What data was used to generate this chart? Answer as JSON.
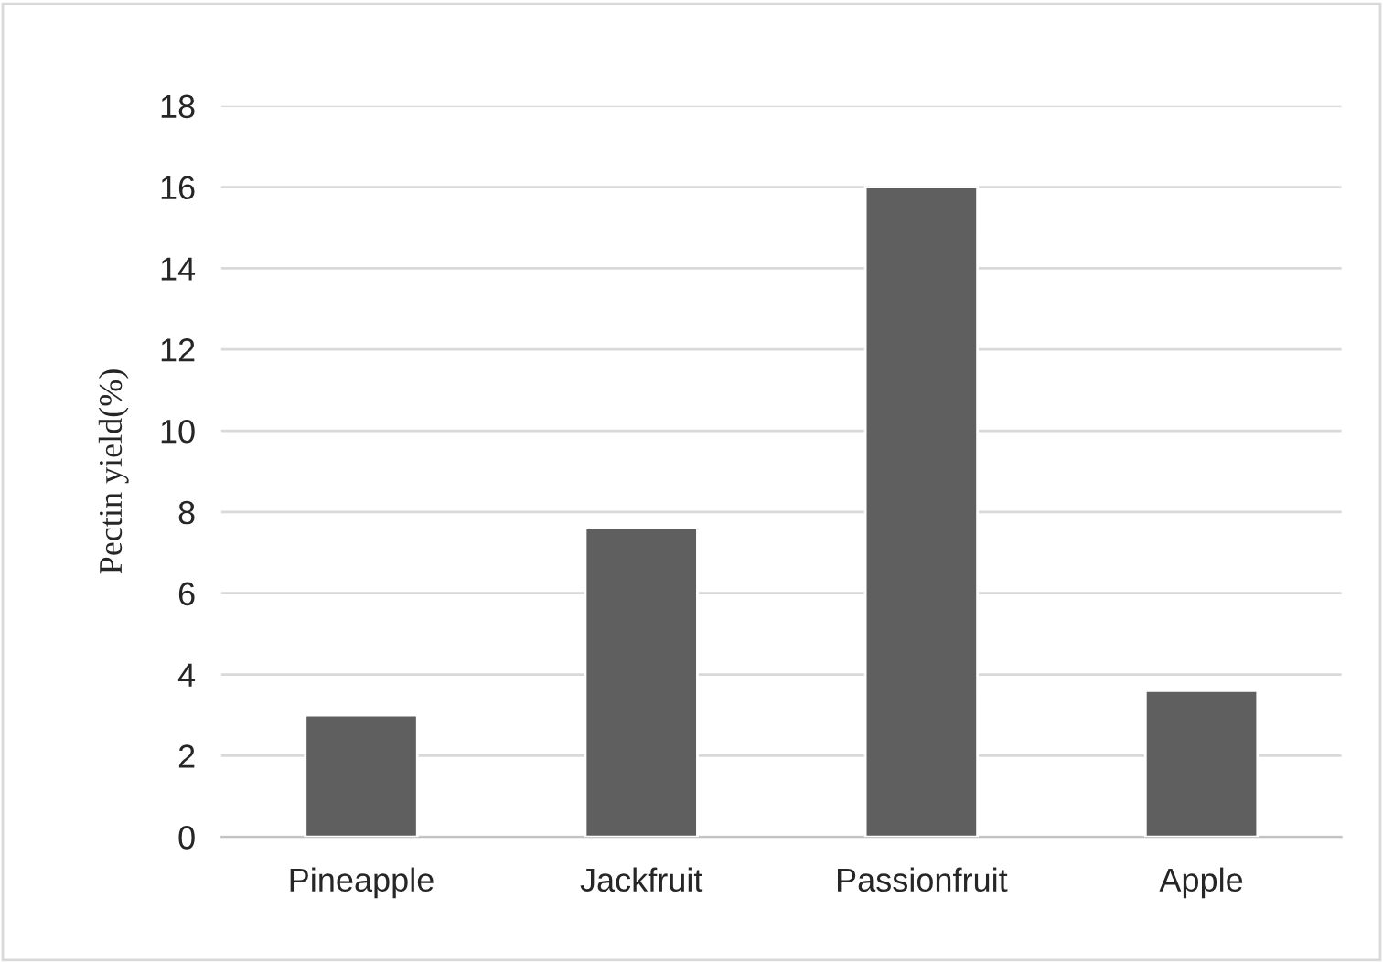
{
  "chart_data": {
    "type": "bar",
    "ylabel": "Pectin yield(%)",
    "categories": [
      "Pineapple",
      "Jackfruit",
      "Passionfruit",
      "Apple"
    ],
    "values": [
      3.0,
      7.6,
      16.0,
      3.6
    ],
    "color": "#5f5f5f",
    "ylim": [
      0,
      18
    ],
    "yticks": [
      0,
      2,
      4,
      6,
      8,
      10,
      12,
      14,
      16,
      18
    ],
    "grid": "y"
  }
}
